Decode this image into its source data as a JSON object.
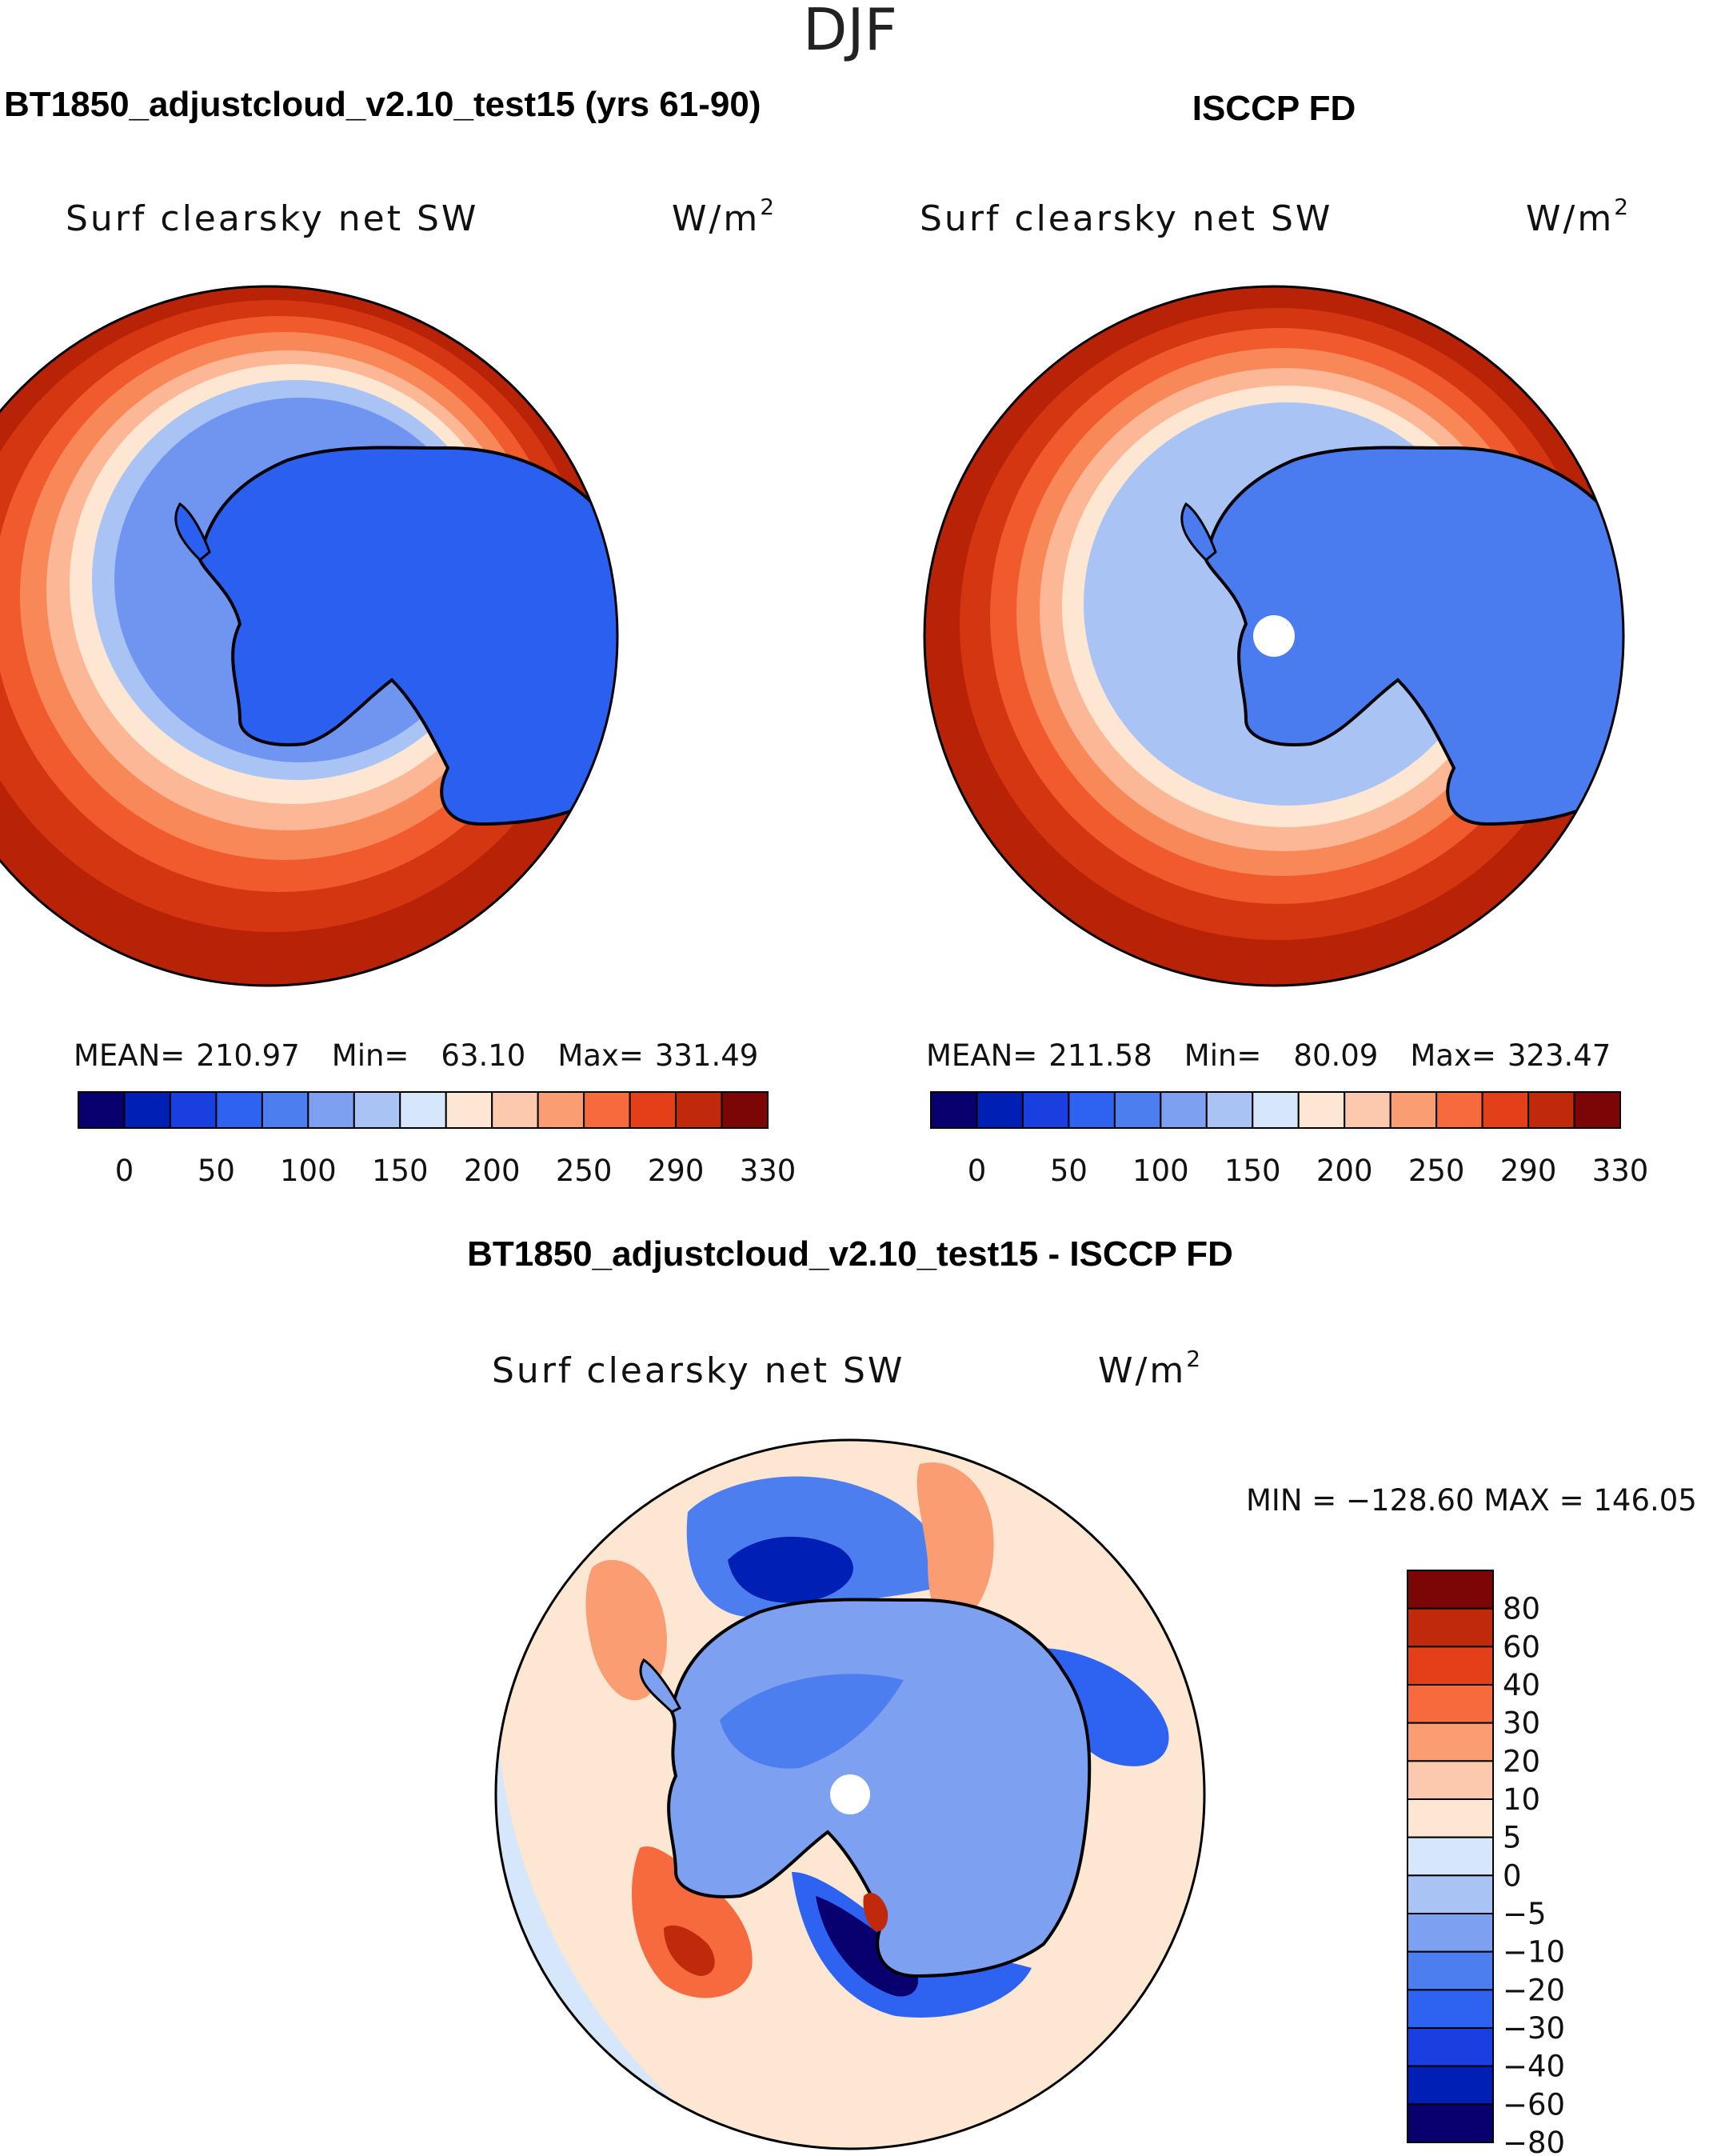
{
  "season": "DJF",
  "chart_data": [
    {
      "type": "heatmap",
      "title": "BT1850_adjustcloud_v2.10_test15 (yrs 61-90)",
      "variable": "Surf clearsky net SW",
      "units_base": "W/m",
      "units_exp": "2",
      "projection": "south polar stereographic",
      "stats": {
        "mean_label": "MEAN=",
        "mean": "210.97",
        "min_label": "Min=",
        "min": "63.10",
        "max_label": "Max=",
        "max": "331.49"
      },
      "colorbar": {
        "colors": [
          "#08006e",
          "#001fb5",
          "#1a3fe0",
          "#2d63f0",
          "#4d7ef0",
          "#7ea0f0",
          "#a9c3f5",
          "#d6e6fb",
          "#fde6d2",
          "#fcc8ae",
          "#fa9d73",
          "#f66a3d",
          "#e3401a",
          "#c02a0a",
          "#7c0505"
        ],
        "tick_labels": [
          "0",
          "50",
          "100",
          "150",
          "200",
          "250",
          "290",
          "330"
        ]
      }
    },
    {
      "type": "heatmap",
      "title": "ISCCP FD",
      "variable": "Surf clearsky net SW",
      "units_base": "W/m",
      "units_exp": "2",
      "projection": "south polar stereographic",
      "stats": {
        "mean_label": "MEAN=",
        "mean": "211.58",
        "min_label": "Min=",
        "min": "80.09",
        "max_label": "Max=",
        "max": "323.47"
      },
      "colorbar": {
        "colors": [
          "#08006e",
          "#001fb5",
          "#1a3fe0",
          "#2d63f0",
          "#4d7ef0",
          "#7ea0f0",
          "#a9c3f5",
          "#d6e6fb",
          "#fde6d2",
          "#fcc8ae",
          "#fa9d73",
          "#f66a3d",
          "#e3401a",
          "#c02a0a",
          "#7c0505"
        ],
        "tick_labels": [
          "0",
          "50",
          "100",
          "150",
          "200",
          "250",
          "290",
          "330"
        ]
      }
    },
    {
      "type": "heatmap",
      "title": "BT1850_adjustcloud_v2.10_test15 - ISCCP FD",
      "variable": "Surf clearsky net SW",
      "units_base": "W/m",
      "units_exp": "2",
      "projection": "south polar stereographic",
      "stats_text": "MIN = −128.60  MAX = 146.05",
      "colorbar": {
        "colors": [
          "#7c0505",
          "#c02a0a",
          "#e3401a",
          "#f66a3d",
          "#fa9d73",
          "#fcc8ae",
          "#fde6d2",
          "#d6e6fb",
          "#a9c3f5",
          "#7ea0f0",
          "#4d7ef0",
          "#2d63f0",
          "#1a3fe0",
          "#001fb5",
          "#08006e"
        ],
        "tick_labels": [
          "80",
          "60",
          "40",
          "30",
          "20",
          "10",
          "5",
          "0",
          "−5",
          "−10",
          "−20",
          "−30",
          "−40",
          "−60",
          "−80"
        ]
      }
    }
  ]
}
